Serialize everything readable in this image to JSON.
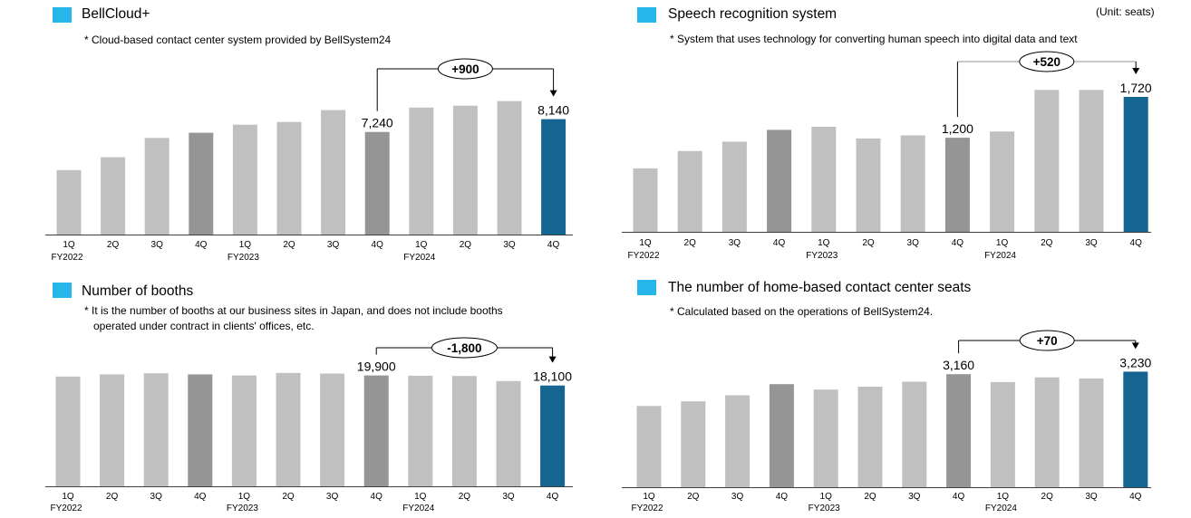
{
  "unit_label": "(Unit: seats)",
  "panels": [
    {
      "title": "BellCloud+",
      "notes": [
        "* Cloud-based contact center system provided by BellSystem24"
      ]
    },
    {
      "title": "Speech recognition system",
      "notes": [
        "* System that uses technology for converting human speech into digital data and text"
      ]
    },
    {
      "title": "Number of booths",
      "notes": [
        "* It is the number of booths at our business sites in Japan, and does not include booths",
        "operated under contract in clients' offices, etc."
      ]
    },
    {
      "title": "The number of home-based contact center seats",
      "notes": [
        "* Calculated based on the operations of BellSystem24."
      ]
    }
  ],
  "colors": {
    "light_bar": "#c0c0c0",
    "dark_bar": "#959595",
    "highlight_bar": "#146591",
    "title_square": "#27b6ea"
  },
  "chart_data": [
    {
      "type": "bar",
      "categories": [
        "1Q",
        "2Q",
        "3Q",
        "4Q",
        "1Q",
        "2Q",
        "3Q",
        "4Q",
        "1Q",
        "2Q",
        "3Q",
        "4Q"
      ],
      "year_labels": [
        "FY2022",
        "",
        "",
        "",
        "FY2023",
        "",
        "",
        "",
        "FY2024",
        "",
        "",
        ""
      ],
      "values": [
        4550,
        5460,
        6820,
        7180,
        7750,
        7940,
        8780,
        7240,
        8960,
        9090,
        9420,
        8140
      ],
      "value_labels": {
        "7": "7,240",
        "11": "8,140"
      },
      "highlight": {
        "dark": [
          3,
          7
        ],
        "accent": [
          11
        ]
      },
      "change": {
        "label": "+900",
        "from": 7,
        "to": 11
      }
    },
    {
      "type": "bar",
      "categories": [
        "1Q",
        "2Q",
        "3Q",
        "4Q",
        "1Q",
        "2Q",
        "3Q",
        "4Q",
        "1Q",
        "2Q",
        "3Q",
        "4Q"
      ],
      "year_labels": [
        "FY2022",
        "",
        "",
        "",
        "FY2023",
        "",
        "",
        "",
        "FY2024",
        "",
        "",
        ""
      ],
      "values": [
        810,
        1030,
        1150,
        1300,
        1340,
        1190,
        1230,
        1200,
        1280,
        1810,
        1810,
        1720
      ],
      "value_labels": {
        "7": "1,200",
        "11": "1,720"
      },
      "highlight": {
        "dark": [
          3,
          7
        ],
        "accent": [
          11
        ]
      },
      "change": {
        "label": "+520",
        "from": 7,
        "to": 11
      }
    },
    {
      "type": "bar",
      "categories": [
        "1Q",
        "2Q",
        "3Q",
        "4Q",
        "1Q",
        "2Q",
        "3Q",
        "4Q",
        "1Q",
        "2Q",
        "3Q",
        "4Q"
      ],
      "year_labels": [
        "FY2022",
        "",
        "",
        "",
        "FY2023",
        "",
        "",
        "",
        "FY2024",
        "",
        "",
        ""
      ],
      "values": [
        19700,
        20100,
        20300,
        20100,
        19900,
        20350,
        20250,
        19900,
        19850,
        19800,
        18900,
        18100
      ],
      "value_labels": {
        "7": "19,900",
        "11": "18,100"
      },
      "highlight": {
        "dark": [
          3,
          7
        ],
        "accent": [
          11
        ]
      },
      "change": {
        "label": "-1,800",
        "from": 7,
        "to": 11
      }
    },
    {
      "type": "bar",
      "categories": [
        "1Q",
        "2Q",
        "3Q",
        "4Q",
        "1Q",
        "2Q",
        "3Q",
        "4Q",
        "1Q",
        "2Q",
        "3Q",
        "4Q"
      ],
      "year_labels": [
        "FY2022",
        "",
        "",
        "",
        "FY2023",
        "",
        "",
        "",
        "FY2024",
        "",
        "",
        ""
      ],
      "values": [
        2270,
        2400,
        2570,
        2880,
        2730,
        2810,
        2950,
        3160,
        2940,
        3070,
        3040,
        3230
      ],
      "value_labels": {
        "7": "3,160",
        "11": "3,230"
      },
      "highlight": {
        "dark": [
          3,
          7
        ],
        "accent": [
          11
        ]
      },
      "change": {
        "label": "+70",
        "from": 7,
        "to": 11
      }
    }
  ]
}
